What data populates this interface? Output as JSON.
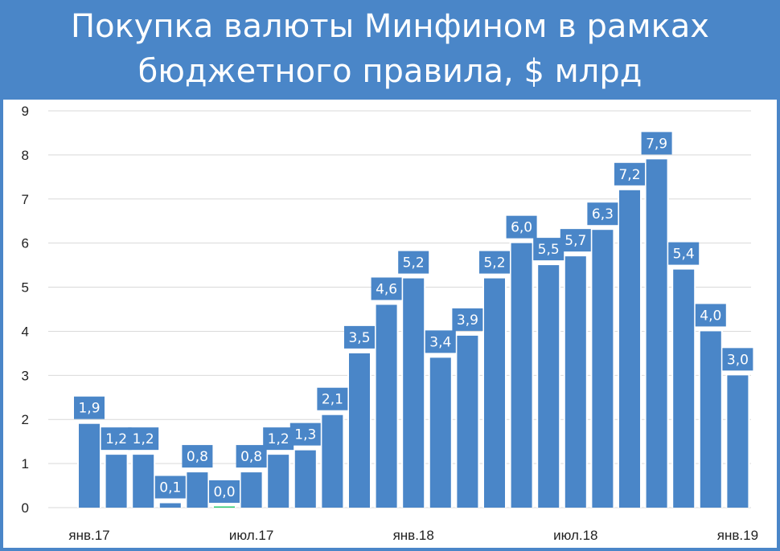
{
  "title": {
    "line1": "Покупка валюты Минфином в рамках",
    "line2": "бюджетного правила, $ млрд"
  },
  "colors": {
    "header_bg": "#4a86c8",
    "bar": "#4a86c8",
    "label_bg": "#4a86c8",
    "zero_bar": "#2ecc71"
  },
  "chart_data": {
    "type": "bar",
    "title": "Покупка валюты Минфином в рамках бюджетного правила, $ млрд",
    "xlabel": "",
    "ylabel": "",
    "ylim": [
      0,
      9
    ],
    "yticks": [
      "0",
      "1",
      "2",
      "3",
      "4",
      "5",
      "6",
      "7",
      "8",
      "9"
    ],
    "xtick_labels": [
      {
        "index": 0,
        "label": "янв.17"
      },
      {
        "index": 6,
        "label": "июл.17"
      },
      {
        "index": 12,
        "label": "янв.18"
      },
      {
        "index": 18,
        "label": "июл.18"
      },
      {
        "index": 24,
        "label": "янв.19"
      }
    ],
    "grid": "horizontal",
    "legend": "none",
    "values": [
      1.9,
      1.2,
      1.2,
      0.1,
      0.8,
      0.0,
      0.8,
      1.2,
      1.3,
      2.1,
      3.5,
      4.6,
      5.2,
      3.4,
      3.9,
      5.2,
      6.0,
      5.5,
      5.7,
      6.3,
      7.2,
      7.9,
      5.4,
      4.0,
      3.0
    ],
    "data_labels": [
      "1,9",
      "1,2",
      "1,2",
      "0,1",
      "0,8",
      "0,0",
      "0,8",
      "1,2",
      "1,3",
      "2,1",
      "3,5",
      "4,6",
      "5,2",
      "3,4",
      "3,9",
      "5,2",
      "6,0",
      "5,5",
      "5,7",
      "6,3",
      "7,2",
      "7,9",
      "5,4",
      "4,0",
      "3,0"
    ]
  }
}
